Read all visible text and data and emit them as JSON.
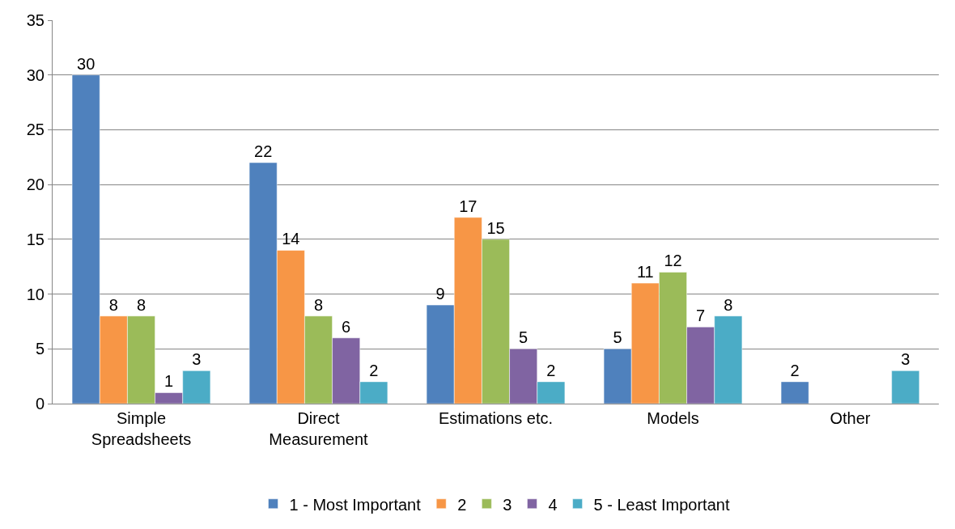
{
  "chart_data": {
    "type": "bar",
    "categories": [
      "Simple\nSpreadsheets",
      "Direct\nMeasurement",
      "Estimations etc.",
      "Models",
      "Other"
    ],
    "series": [
      {
        "name": "1 - Most Important",
        "color": "#4f81bd",
        "values": [
          30,
          22,
          9,
          5,
          2
        ]
      },
      {
        "name": "2",
        "color": "#f79646",
        "values": [
          8,
          14,
          17,
          11,
          null
        ]
      },
      {
        "name": "3",
        "color": "#9bbb59",
        "values": [
          8,
          8,
          15,
          12,
          null
        ]
      },
      {
        "name": "4",
        "color": "#8064a2",
        "values": [
          1,
          6,
          5,
          7,
          null
        ]
      },
      {
        "name": "5 - Least Important",
        "color": "#4bacc6",
        "values": [
          3,
          2,
          2,
          8,
          3
        ]
      }
    ],
    "ylim": [
      0,
      35
    ],
    "yticks": [
      0,
      5,
      10,
      15,
      20,
      25,
      30,
      35
    ],
    "grid": "y",
    "legend": "bottom",
    "data_labels": true
  }
}
